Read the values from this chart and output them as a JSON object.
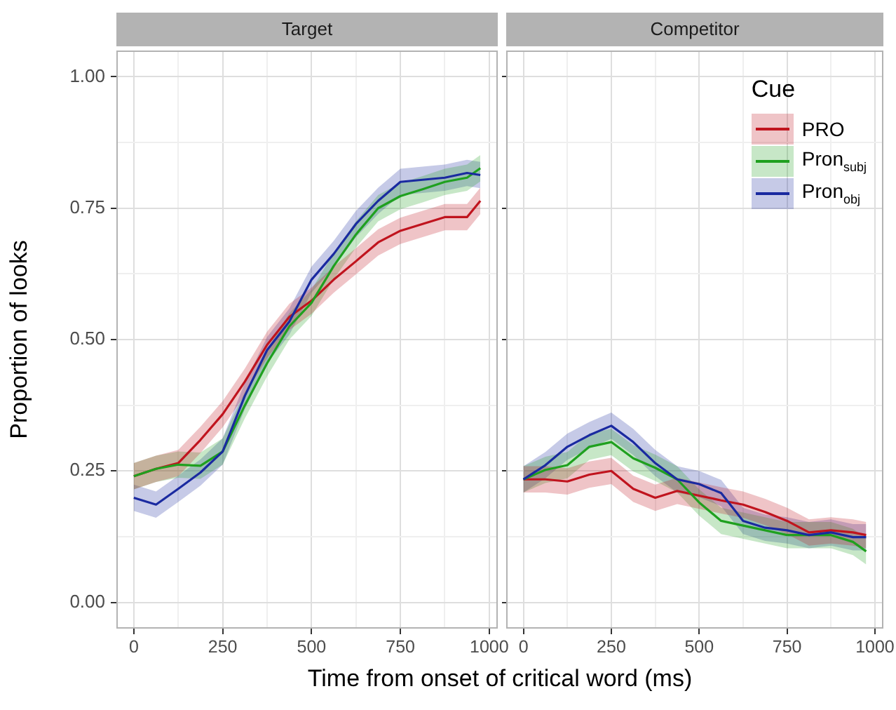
{
  "chart_data": [
    {
      "type": "line",
      "title": "Target",
      "xlabel": "Time from onset of critical word (ms)",
      "ylabel": "Proportion of looks",
      "legend": false,
      "grid": true,
      "marker": "none",
      "x": [
        0,
        62.5,
        125,
        187.5,
        250,
        312.5,
        375,
        437.5,
        500,
        562.5,
        625,
        687.5,
        750,
        812.5,
        875,
        937.5,
        975
      ],
      "xlim": [
        -49,
        1024
      ],
      "xticks": [
        0,
        250,
        500,
        750,
        1000,
        {
          "value": 125,
          "label": null
        },
        {
          "value": 375,
          "label": null
        },
        {
          "value": 625,
          "label": null
        },
        {
          "value": 875,
          "label": null
        }
      ],
      "ylim": [
        -0.05,
        1.05
      ],
      "yticks": [
        {
          "value": 0,
          "label": "0.00"
        },
        {
          "value": 0.25,
          "label": "0.25"
        },
        {
          "value": 0.5,
          "label": "0.50"
        },
        {
          "value": 0.75,
          "label": "0.75"
        },
        {
          "value": 1,
          "label": "1.00"
        },
        {
          "value": 0.125,
          "label": null
        },
        {
          "value": 0.375,
          "label": null
        },
        {
          "value": 0.625,
          "label": null
        },
        {
          "value": 0.875,
          "label": null
        }
      ],
      "series": [
        {
          "color": "#c0141e",
          "values": [
            0.24,
            0.254,
            0.265,
            0.309,
            0.358,
            0.42,
            0.49,
            0.543,
            0.574,
            0.614,
            0.649,
            0.685,
            0.707,
            0.72,
            0.733,
            0.733,
            0.764
          ],
          "lower": [
            0.215,
            0.229,
            0.24,
            0.284,
            0.333,
            0.395,
            0.465,
            0.518,
            0.549,
            0.589,
            0.624,
            0.66,
            0.682,
            0.695,
            0.708,
            0.708,
            0.739
          ],
          "upper": [
            0.265,
            0.279,
            0.29,
            0.334,
            0.383,
            0.445,
            0.515,
            0.568,
            0.599,
            0.639,
            0.674,
            0.71,
            0.732,
            0.745,
            0.758,
            0.758,
            0.789
          ]
        },
        {
          "color": "#1fa01f",
          "values": [
            0.24,
            0.254,
            0.262,
            0.26,
            0.287,
            0.375,
            0.455,
            0.525,
            0.57,
            0.64,
            0.7,
            0.75,
            0.773,
            0.786,
            0.8,
            0.808,
            0.826
          ],
          "lower": [
            0.215,
            0.229,
            0.237,
            0.235,
            0.262,
            0.35,
            0.43,
            0.5,
            0.545,
            0.615,
            0.675,
            0.725,
            0.748,
            0.761,
            0.775,
            0.783,
            0.801
          ],
          "upper": [
            0.265,
            0.279,
            0.287,
            0.285,
            0.312,
            0.4,
            0.48,
            0.55,
            0.595,
            0.665,
            0.725,
            0.775,
            0.798,
            0.811,
            0.825,
            0.833,
            0.851
          ]
        },
        {
          "color": "#1a2aa0",
          "values": [
            0.199,
            0.186,
            0.216,
            0.247,
            0.287,
            0.393,
            0.48,
            0.534,
            0.614,
            0.663,
            0.72,
            0.764,
            0.8,
            0.804,
            0.808,
            0.817,
            0.813
          ],
          "lower": [
            0.174,
            0.161,
            0.191,
            0.222,
            0.262,
            0.368,
            0.455,
            0.509,
            0.589,
            0.638,
            0.695,
            0.739,
            0.775,
            0.779,
            0.783,
            0.792,
            0.788
          ],
          "upper": [
            0.224,
            0.211,
            0.241,
            0.272,
            0.312,
            0.418,
            0.505,
            0.559,
            0.639,
            0.688,
            0.745,
            0.789,
            0.825,
            0.829,
            0.833,
            0.842,
            0.838
          ]
        }
      ]
    },
    {
      "type": "line",
      "title": "Competitor",
      "legend_title": "Cue",
      "legend": "top right",
      "grid": true,
      "marker": "none",
      "tick_labels": "x",
      "x": [
        0,
        62.5,
        125,
        187.5,
        250,
        312.5,
        375,
        437.5,
        500,
        562.5,
        625,
        687.5,
        750,
        812.5,
        875,
        937.5,
        975
      ],
      "xlim": [
        -49,
        1024
      ],
      "xticks": [
        0,
        250,
        500,
        750,
        1000,
        {
          "value": 125,
          "label": null
        },
        {
          "value": 375,
          "label": null
        },
        {
          "value": 625,
          "label": null
        },
        {
          "value": 875,
          "label": null
        }
      ],
      "ylim": [
        -0.05,
        1.05
      ],
      "yticks": [
        0,
        0.25,
        0.5,
        0.75,
        1,
        {
          "value": 0.125,
          "label": null
        },
        {
          "value": 0.375,
          "label": null
        },
        {
          "value": 0.625,
          "label": null
        },
        {
          "value": 0.875,
          "label": null
        }
      ],
      "series": [
        {
          "name": "PRO",
          "color": "#c0141e",
          "values": [
            0.234,
            0.234,
            0.23,
            0.243,
            0.25,
            0.216,
            0.199,
            0.212,
            0.203,
            0.194,
            0.186,
            0.172,
            0.155,
            0.133,
            0.137,
            0.133,
            0.128
          ],
          "lower": [
            0.209,
            0.209,
            0.205,
            0.218,
            0.225,
            0.191,
            0.174,
            0.187,
            0.178,
            0.169,
            0.161,
            0.147,
            0.13,
            0.108,
            0.112,
            0.108,
            0.103
          ],
          "upper": [
            0.259,
            0.259,
            0.255,
            0.268,
            0.275,
            0.241,
            0.224,
            0.237,
            0.228,
            0.219,
            0.211,
            0.197,
            0.18,
            0.158,
            0.162,
            0.158,
            0.153
          ]
        },
        {
          "name": "Pron$_{subj}$",
          "color": "#1fa01f",
          "values": [
            0.234,
            0.252,
            0.261,
            0.296,
            0.305,
            0.274,
            0.256,
            0.234,
            0.19,
            0.155,
            0.146,
            0.137,
            0.128,
            0.128,
            0.128,
            0.115,
            0.097
          ],
          "lower": [
            0.209,
            0.227,
            0.236,
            0.271,
            0.28,
            0.249,
            0.231,
            0.209,
            0.165,
            0.13,
            0.121,
            0.112,
            0.103,
            0.103,
            0.103,
            0.09,
            0.072
          ],
          "upper": [
            0.259,
            0.277,
            0.286,
            0.321,
            0.33,
            0.299,
            0.281,
            0.259,
            0.215,
            0.18,
            0.171,
            0.162,
            0.153,
            0.153,
            0.153,
            0.14,
            0.122
          ]
        },
        {
          "name": "Pron$_{obj}$",
          "color": "#1a2aa0",
          "values": [
            0.234,
            0.261,
            0.296,
            0.318,
            0.336,
            0.305,
            0.265,
            0.234,
            0.225,
            0.208,
            0.155,
            0.142,
            0.137,
            0.128,
            0.133,
            0.124,
            0.124
          ],
          "lower": [
            0.209,
            0.236,
            0.271,
            0.293,
            0.311,
            0.28,
            0.24,
            0.209,
            0.2,
            0.183,
            0.13,
            0.117,
            0.112,
            0.103,
            0.108,
            0.099,
            0.099
          ],
          "upper": [
            0.259,
            0.286,
            0.321,
            0.343,
            0.361,
            0.33,
            0.29,
            0.259,
            0.25,
            0.233,
            0.18,
            0.167,
            0.162,
            0.153,
            0.158,
            0.149,
            0.149
          ]
        }
      ]
    }
  ]
}
